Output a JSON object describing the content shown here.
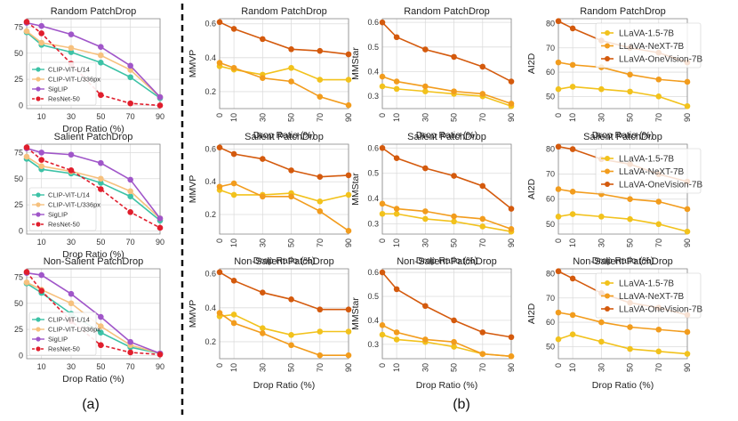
{
  "captions": {
    "a": "(a)",
    "b": "(b)"
  },
  "chart_data": [
    {
      "id": "a-random",
      "type": "line",
      "title": "Random PatchDrop",
      "xlabel": "Drop Ratio (%)",
      "ylabel": "",
      "x": [
        0,
        10,
        30,
        50,
        70,
        90
      ],
      "xticks": [
        10,
        30,
        50,
        70,
        90
      ],
      "xlim": [
        0,
        90
      ],
      "yticks": [
        0,
        25,
        50,
        75
      ],
      "ylim": [
        -3,
        83
      ],
      "legend": "lower-left",
      "series": [
        {
          "name": "CLIP-ViT-L/14",
          "color": "#3cc2a6",
          "values": [
            70,
            58,
            51,
            41,
            27,
            7
          ]
        },
        {
          "name": "CLIP-ViT-L/336px",
          "color": "#f6c17e",
          "values": [
            71,
            60,
            55,
            48,
            34,
            8
          ]
        },
        {
          "name": "SigLIP",
          "color": "#a056c9",
          "values": [
            79,
            76,
            68,
            56,
            38,
            8
          ]
        },
        {
          "name": "ResNet-50",
          "color": "#e01e2d",
          "dashed": true,
          "values": [
            80,
            69,
            40,
            10,
            2,
            0
          ]
        }
      ]
    },
    {
      "id": "a-salient",
      "type": "line",
      "title": "Salient PatchDrop",
      "xlabel": "Drop Ratio (%)",
      "ylabel": "",
      "x": [
        0,
        10,
        30,
        50,
        70,
        90
      ],
      "xticks": [
        10,
        30,
        50,
        70,
        90
      ],
      "xlim": [
        0,
        90
      ],
      "yticks": [
        0,
        25,
        50,
        75
      ],
      "ylim": [
        -3,
        83
      ],
      "legend": "lower-left",
      "series": [
        {
          "name": "CLIP-ViT-L/14",
          "color": "#3cc2a6",
          "values": [
            69,
            59,
            55,
            46,
            33,
            10
          ]
        },
        {
          "name": "CLIP-ViT-L/336px",
          "color": "#f6c17e",
          "values": [
            71,
            62,
            57,
            50,
            38,
            12
          ]
        },
        {
          "name": "SigLIP",
          "color": "#a056c9",
          "values": [
            79,
            75,
            73,
            65,
            49,
            12
          ]
        },
        {
          "name": "ResNet-50",
          "color": "#e01e2d",
          "dashed": true,
          "values": [
            80,
            68,
            58,
            40,
            18,
            3
          ]
        }
      ]
    },
    {
      "id": "a-nonsalient",
      "type": "line",
      "title": "Non-Salient PatchDrop",
      "xlabel": "Drop Ratio (%)",
      "ylabel": "",
      "x": [
        0,
        10,
        30,
        50,
        70,
        90
      ],
      "xticks": [
        10,
        30,
        50,
        70,
        90
      ],
      "xlim": [
        0,
        90
      ],
      "yticks": [
        0,
        25,
        50,
        75
      ],
      "ylim": [
        -3,
        83
      ],
      "legend": "lower-left",
      "series": [
        {
          "name": "CLIP-ViT-L/14",
          "color": "#3cc2a6",
          "values": [
            69,
            60,
            40,
            22,
            8,
            2
          ]
        },
        {
          "name": "CLIP-ViT-L/336px",
          "color": "#f6c17e",
          "values": [
            70,
            63,
            50,
            28,
            10,
            2
          ]
        },
        {
          "name": "SigLIP",
          "color": "#a056c9",
          "values": [
            79,
            77,
            59,
            37,
            13,
            2
          ]
        },
        {
          "name": "ResNet-50",
          "color": "#e01e2d",
          "dashed": true,
          "values": [
            80,
            62,
            33,
            10,
            3,
            1
          ]
        }
      ]
    },
    {
      "id": "b-mmvp-random",
      "type": "line",
      "title": "Random PatchDrop",
      "xlabel": "Drop Ratio (%)",
      "ylabel": "MMVP",
      "x": [
        0,
        10,
        30,
        50,
        70,
        90
      ],
      "xticks": [
        0,
        10,
        30,
        50,
        70,
        90
      ],
      "xlim": [
        0,
        90
      ],
      "yticks": [
        0.2,
        0.4,
        0.6
      ],
      "ylim": [
        0.1,
        0.63
      ],
      "series": [
        {
          "name": "LLaVA-1.5-7B",
          "color": "#f2c21c",
          "values": [
            0.35,
            0.33,
            0.3,
            0.34,
            0.27,
            0.27
          ]
        },
        {
          "name": "LLaVA-NeXT-7B",
          "color": "#f29c1d",
          "values": [
            0.37,
            0.34,
            0.28,
            0.26,
            0.17,
            0.12
          ]
        },
        {
          "name": "LLaVA-OneVision-7B",
          "color": "#d45a0d",
          "values": [
            0.61,
            0.57,
            0.51,
            0.45,
            0.44,
            0.42
          ]
        }
      ]
    },
    {
      "id": "b-mmstar-random",
      "type": "line",
      "title": "Random PatchDrop",
      "xlabel": "Drop Ratio (%)",
      "ylabel": "MMStar",
      "x": [
        0,
        10,
        30,
        50,
        70,
        90
      ],
      "xticks": [
        0,
        10,
        30,
        50,
        70,
        90
      ],
      "xlim": [
        0,
        90
      ],
      "yticks": [
        0.3,
        0.4,
        0.5,
        0.6
      ],
      "ylim": [
        0.25,
        0.615
      ],
      "series": [
        {
          "name": "LLaVA-1.5-7B",
          "color": "#f2c21c",
          "values": [
            0.34,
            0.33,
            0.32,
            0.31,
            0.3,
            0.26
          ]
        },
        {
          "name": "LLaVA-NeXT-7B",
          "color": "#f29c1d",
          "values": [
            0.38,
            0.36,
            0.34,
            0.32,
            0.31,
            0.27
          ]
        },
        {
          "name": "LLaVA-OneVision-7B",
          "color": "#d45a0d",
          "values": [
            0.6,
            0.54,
            0.49,
            0.46,
            0.42,
            0.36
          ]
        }
      ]
    },
    {
      "id": "b-ai2d-random",
      "type": "line",
      "title": "Random PatchDrop",
      "xlabel": "Drop Ratio (%)",
      "ylabel": "AI2D",
      "x": [
        0,
        10,
        30,
        50,
        70,
        90
      ],
      "xticks": [
        0,
        10,
        30,
        50,
        70,
        90
      ],
      "xlim": [
        0,
        90
      ],
      "yticks": [
        50,
        60,
        70,
        80
      ],
      "ylim": [
        45,
        82
      ],
      "legend": "top-right",
      "series": [
        {
          "name": "LLaVA-1.5-7B",
          "color": "#f2c21c",
          "values": [
            53,
            54,
            53,
            52,
            50,
            46
          ]
        },
        {
          "name": "LLaVA-NeXT-7B",
          "color": "#f29c1d",
          "values": [
            64,
            63,
            62,
            59,
            57,
            56
          ]
        },
        {
          "name": "LLaVA-OneVision-7B",
          "color": "#d45a0d",
          "values": [
            81,
            78,
            73,
            70,
            68,
            64
          ]
        }
      ]
    },
    {
      "id": "b-mmvp-salient",
      "type": "line",
      "title": "Salient PatchDrop",
      "xlabel": "Drop Ratio (%)",
      "ylabel": "MMVP",
      "x": [
        0,
        10,
        30,
        50,
        70,
        90
      ],
      "xticks": [
        0,
        10,
        30,
        50,
        70,
        90
      ],
      "xlim": [
        0,
        90
      ],
      "yticks": [
        0.2,
        0.4,
        0.6
      ],
      "ylim": [
        0.08,
        0.63
      ],
      "series": [
        {
          "name": "LLaVA-1.5-7B",
          "color": "#f2c21c",
          "values": [
            0.35,
            0.32,
            0.32,
            0.33,
            0.28,
            0.32
          ]
        },
        {
          "name": "LLaVA-NeXT-7B",
          "color": "#f29c1d",
          "values": [
            0.37,
            0.39,
            0.31,
            0.31,
            0.22,
            0.1
          ]
        },
        {
          "name": "LLaVA-OneVision-7B",
          "color": "#d45a0d",
          "values": [
            0.61,
            0.57,
            0.54,
            0.47,
            0.43,
            0.44
          ]
        }
      ]
    },
    {
      "id": "b-mmstar-salient",
      "type": "line",
      "title": "Salient PatchDrop",
      "xlabel": "Drop Ratio (%)",
      "ylabel": "MMStar",
      "x": [
        0,
        10,
        30,
        50,
        70,
        90
      ],
      "xticks": [
        0,
        10,
        30,
        50,
        70,
        90
      ],
      "xlim": [
        0,
        90
      ],
      "yticks": [
        0.3,
        0.4,
        0.5,
        0.6
      ],
      "ylim": [
        0.26,
        0.615
      ],
      "series": [
        {
          "name": "LLaVA-1.5-7B",
          "color": "#f2c21c",
          "values": [
            0.34,
            0.34,
            0.32,
            0.31,
            0.29,
            0.27
          ]
        },
        {
          "name": "LLaVA-NeXT-7B",
          "color": "#f29c1d",
          "values": [
            0.38,
            0.36,
            0.35,
            0.33,
            0.32,
            0.28
          ]
        },
        {
          "name": "LLaVA-OneVision-7B",
          "color": "#d45a0d",
          "values": [
            0.6,
            0.56,
            0.52,
            0.49,
            0.45,
            0.36
          ]
        }
      ]
    },
    {
      "id": "b-ai2d-salient",
      "type": "line",
      "title": "Salient PatchDrop",
      "xlabel": "Drop Ratio (%)",
      "ylabel": "AI2D",
      "x": [
        0,
        10,
        30,
        50,
        70,
        90
      ],
      "xticks": [
        0,
        10,
        30,
        50,
        70,
        90
      ],
      "xlim": [
        0,
        90
      ],
      "yticks": [
        50,
        60,
        70,
        80
      ],
      "ylim": [
        46,
        82
      ],
      "legend": "top-right",
      "series": [
        {
          "name": "LLaVA-1.5-7B",
          "color": "#f2c21c",
          "values": [
            53,
            54,
            53,
            52,
            50,
            47
          ]
        },
        {
          "name": "LLaVA-NeXT-7B",
          "color": "#f29c1d",
          "values": [
            64,
            63,
            62,
            60,
            59,
            56
          ]
        },
        {
          "name": "LLaVA-OneVision-7B",
          "color": "#d45a0d",
          "values": [
            81,
            80,
            76,
            74,
            70,
            67
          ]
        }
      ]
    },
    {
      "id": "b-mmvp-nonsalient",
      "type": "line",
      "title": "Non-Salient PatchDrop",
      "xlabel": "Drop Ratio (%)",
      "ylabel": "MMVP",
      "x": [
        0,
        10,
        30,
        50,
        70,
        90
      ],
      "xticks": [
        0,
        10,
        30,
        50,
        70,
        90
      ],
      "xlim": [
        0,
        90
      ],
      "yticks": [
        0.2,
        0.4,
        0.6
      ],
      "ylim": [
        0.1,
        0.63
      ],
      "series": [
        {
          "name": "LLaVA-1.5-7B",
          "color": "#f2c21c",
          "values": [
            0.35,
            0.36,
            0.28,
            0.24,
            0.26,
            0.26
          ]
        },
        {
          "name": "LLaVA-NeXT-7B",
          "color": "#f29c1d",
          "values": [
            0.37,
            0.31,
            0.25,
            0.18,
            0.12,
            0.12
          ]
        },
        {
          "name": "LLaVA-OneVision-7B",
          "color": "#d45a0d",
          "values": [
            0.61,
            0.56,
            0.49,
            0.45,
            0.39,
            0.39
          ]
        }
      ]
    },
    {
      "id": "b-mmstar-nonsalient",
      "type": "line",
      "title": "Non-Salient PatchDrop",
      "xlabel": "Drop Ratio (%)",
      "ylabel": "MMStar",
      "x": [
        0,
        10,
        30,
        50,
        70,
        90
      ],
      "xticks": [
        0,
        10,
        30,
        50,
        70,
        90
      ],
      "xlim": [
        0,
        90
      ],
      "yticks": [
        0.3,
        0.4,
        0.5,
        0.6
      ],
      "ylim": [
        0.24,
        0.615
      ],
      "series": [
        {
          "name": "LLaVA-1.5-7B",
          "color": "#f2c21c",
          "values": [
            0.34,
            0.32,
            0.31,
            0.29,
            0.26,
            0.25
          ]
        },
        {
          "name": "LLaVA-NeXT-7B",
          "color": "#f29c1d",
          "values": [
            0.38,
            0.35,
            0.32,
            0.31,
            0.26,
            0.25
          ]
        },
        {
          "name": "LLaVA-OneVision-7B",
          "color": "#d45a0d",
          "values": [
            0.6,
            0.53,
            0.46,
            0.4,
            0.35,
            0.33
          ]
        }
      ]
    },
    {
      "id": "b-ai2d-nonsalient",
      "type": "line",
      "title": "Non-Salient PatchDrop",
      "xlabel": "Drop Ratio (%)",
      "ylabel": "AI2D",
      "x": [
        0,
        10,
        30,
        50,
        70,
        90
      ],
      "xticks": [
        0,
        10,
        30,
        50,
        70,
        90
      ],
      "xlim": [
        0,
        90
      ],
      "yticks": [
        50,
        60,
        70,
        80
      ],
      "ylim": [
        45,
        82
      ],
      "legend": "top-right",
      "series": [
        {
          "name": "LLaVA-1.5-7B",
          "color": "#f2c21c",
          "values": [
            53,
            55,
            52,
            49,
            48,
            47
          ]
        },
        {
          "name": "LLaVA-NeXT-7B",
          "color": "#f29c1d",
          "values": [
            64,
            63,
            60,
            58,
            57,
            56
          ]
        },
        {
          "name": "LLaVA-OneVision-7B",
          "color": "#d45a0d",
          "values": [
            81,
            78,
            72,
            68,
            66,
            63
          ]
        }
      ]
    }
  ]
}
